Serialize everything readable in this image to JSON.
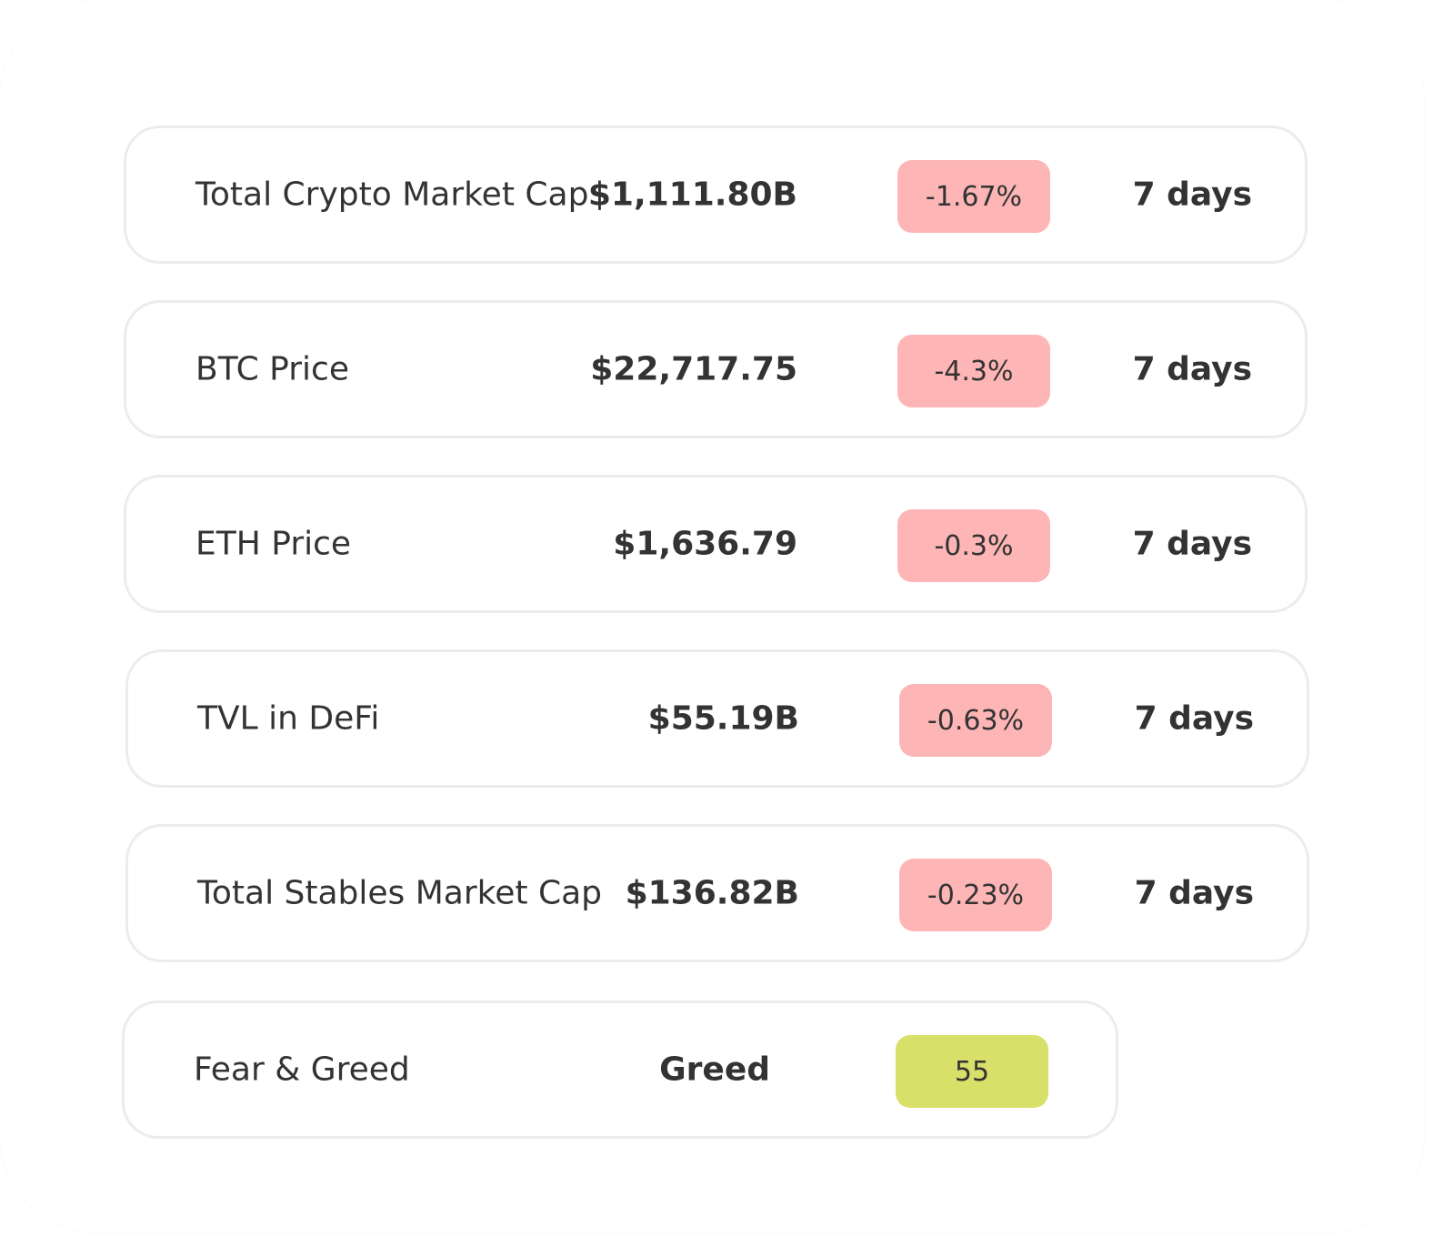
{
  "colors": {
    "negative_badge": "#fdb5b5",
    "neutral_badge": "#d8e06a",
    "card_border": "#ececec",
    "text": "#333333"
  },
  "rows": [
    {
      "label": "Total Crypto Market Cap",
      "value": "$1,111.80B",
      "change": "-1.67%",
      "period": "7 days"
    },
    {
      "label": "BTC Price",
      "value": "$22,717.75",
      "change": "-4.3%",
      "period": "7 days"
    },
    {
      "label": "ETH Price",
      "value": "$1,636.79",
      "change": "-0.3%",
      "period": "7 days"
    },
    {
      "label": "TVL in DeFi",
      "value": "$55.19B",
      "change": "-0.63%",
      "period": "7 days"
    },
    {
      "label": "Total Stables Market Cap",
      "value": "$136.82B",
      "change": "-0.23%",
      "period": "7 days"
    }
  ],
  "fear_greed": {
    "label": "Fear & Greed",
    "value": "Greed",
    "score": "55"
  }
}
